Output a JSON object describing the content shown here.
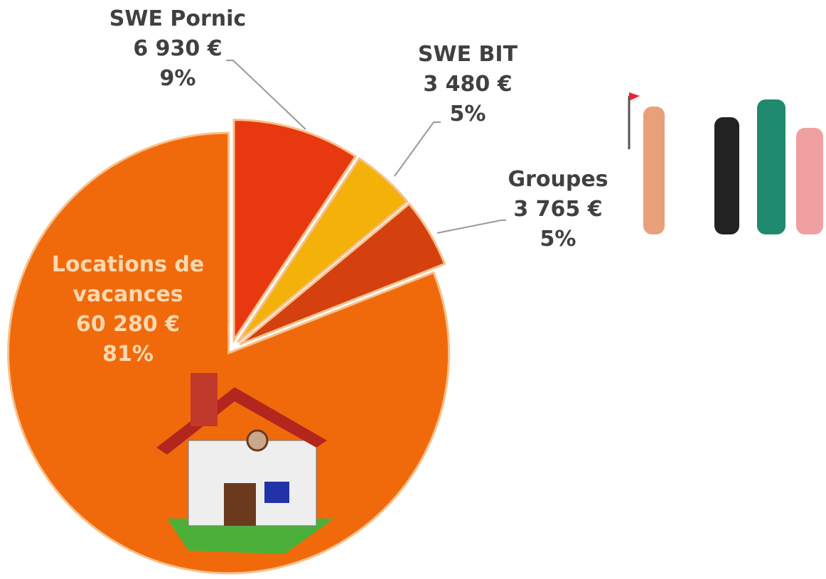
{
  "chart_data": {
    "type": "pie",
    "categories": [
      "SWE Pornic",
      "SWE BIT",
      "Groupes",
      "Locations de vacances"
    ],
    "values": [
      6930,
      3480,
      3765,
      60280
    ],
    "value_labels": [
      "6 930 €",
      "3 480 €",
      "3 765 €",
      "60 280 €"
    ],
    "shares": [
      9,
      5,
      5,
      81
    ],
    "share_labels": [
      "9%",
      "5%",
      "5%",
      "81%"
    ],
    "colors": [
      "#e8380f",
      "#f3b10a",
      "#d4400e",
      "#f06a0c"
    ]
  }
}
